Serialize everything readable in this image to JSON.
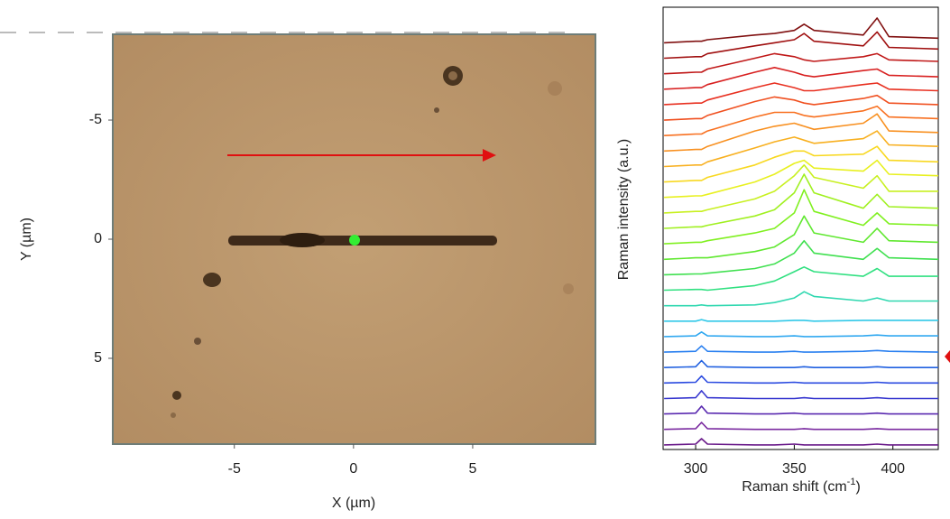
{
  "chart_data": [
    {
      "type": "image",
      "x_label": "X (µm)",
      "y_label": "Y (µm)",
      "xlim": [
        -10.1,
        10.15
      ],
      "ylim": [
        -8.6,
        8.6
      ],
      "y_inverted": true,
      "xticks": [
        -5,
        0,
        5
      ],
      "yticks": [
        -5,
        0,
        5
      ]
    },
    {
      "type": "line",
      "y_label": "Raman intensity (a.u.)",
      "x_label": "Raman shift (cm",
      "x_label_sup": "-1",
      "x_label_end": ")",
      "xlim": [
        283.5,
        423
      ],
      "ylim": [
        -0.3,
        28.3
      ],
      "xticks": [
        300,
        350,
        400
      ],
      "x": [
        284,
        300,
        303,
        306,
        330,
        340,
        350,
        355,
        360,
        385,
        392,
        398,
        423
      ],
      "series": [
        {
          "color": "#6a1b8a",
          "values": [
            0,
            0.05,
            0.4,
            0.05,
            0,
            0,
            0.05,
            0,
            0,
            0,
            0.05,
            0,
            0
          ]
        },
        {
          "color": "#7a2aa0",
          "values": [
            1,
            1.05,
            1.45,
            1.05,
            1,
            1,
            1,
            1.05,
            1,
            1,
            1.05,
            1,
            1
          ]
        },
        {
          "color": "#5a2ab0",
          "values": [
            2,
            2.05,
            2.5,
            2.05,
            2,
            2,
            2.05,
            2,
            2,
            2,
            2.05,
            2,
            2
          ]
        },
        {
          "color": "#3a3ad0",
          "values": [
            3,
            3.05,
            3.5,
            3.05,
            3,
            3,
            3,
            3.05,
            3,
            3,
            3.05,
            3,
            3
          ]
        },
        {
          "color": "#2a4ae0",
          "values": [
            4,
            4.05,
            4.45,
            4.05,
            4,
            4,
            4.05,
            4,
            4,
            4,
            4.05,
            4,
            4
          ]
        },
        {
          "color": "#2060e0",
          "values": [
            5,
            5.05,
            5.45,
            5.05,
            5,
            5,
            5,
            5.05,
            5,
            5,
            5.05,
            5,
            5
          ]
        },
        {
          "color": "#2a80f0",
          "values": [
            6,
            6.05,
            6.4,
            6.05,
            6,
            6,
            6.05,
            6,
            6,
            6.05,
            6.1,
            6.05,
            6
          ]
        },
        {
          "color": "#30a8f0",
          "values": [
            7,
            7.05,
            7.3,
            7.05,
            7,
            7,
            7.05,
            7,
            7,
            7.05,
            7.1,
            7.05,
            7.05
          ]
        },
        {
          "color": "#30c8e8",
          "values": [
            8,
            8,
            8.1,
            8,
            8,
            8,
            8.05,
            8.05,
            8,
            8.05,
            8.05,
            8.05,
            8.05
          ]
        },
        {
          "color": "#30d8b0",
          "values": [
            9,
            9,
            9.05,
            9,
            9.05,
            9.2,
            9.5,
            9.9,
            9.6,
            9.3,
            9.5,
            9.3,
            9.3
          ]
        },
        {
          "color": "#30e080",
          "values": [
            10,
            10.05,
            10.05,
            10,
            10.3,
            10.6,
            11.2,
            11.5,
            11.2,
            10.9,
            11.4,
            10.9,
            10.9
          ]
        },
        {
          "color": "#40e050",
          "values": [
            11,
            11.05,
            11.05,
            11.1,
            11.4,
            11.7,
            12.4,
            13.2,
            12.4,
            12,
            12.7,
            12.1,
            12
          ]
        },
        {
          "color": "#60e830",
          "values": [
            12,
            12.1,
            12.1,
            12.1,
            12.5,
            12.8,
            13.6,
            14.8,
            13.7,
            13.1,
            14,
            13.2,
            13.1
          ]
        },
        {
          "color": "#80f020",
          "values": [
            13,
            13.1,
            13.1,
            13.2,
            13.7,
            14,
            15,
            16.5,
            15.1,
            14.2,
            15,
            14.3,
            14.2
          ]
        },
        {
          "color": "#a0f020",
          "values": [
            14,
            14.1,
            14.1,
            14.2,
            14.8,
            15.2,
            16.3,
            17.5,
            16.3,
            15.3,
            16.2,
            15.4,
            15.3
          ]
        },
        {
          "color": "#c8f020",
          "values": [
            15,
            15.1,
            15.1,
            15.2,
            15.9,
            16.4,
            17.4,
            18.1,
            17.3,
            16.6,
            17.4,
            16.4,
            16.4
          ]
        },
        {
          "color": "#e8f020",
          "values": [
            16,
            16.1,
            16.1,
            16.2,
            17,
            17.5,
            18.2,
            18.4,
            17.9,
            17.7,
            18.4,
            17.5,
            17.4
          ]
        },
        {
          "color": "#f8d820",
          "values": [
            17,
            17.1,
            17.1,
            17.3,
            18.1,
            18.6,
            19,
            19,
            18.7,
            18.8,
            19.3,
            18.4,
            18.3
          ]
        },
        {
          "color": "#f8b020",
          "values": [
            18,
            18.1,
            18.1,
            18.3,
            19.2,
            19.6,
            19.9,
            19.7,
            19.5,
            19.8,
            20.3,
            19.4,
            19.3
          ]
        },
        {
          "color": "#f89020",
          "values": [
            19,
            19.1,
            19.1,
            19.3,
            20.3,
            20.6,
            20.8,
            20.6,
            20.4,
            20.8,
            21.4,
            20.3,
            20.2
          ]
        },
        {
          "color": "#f87020",
          "values": [
            20,
            20.1,
            20.1,
            20.3,
            21.2,
            21.5,
            21.5,
            21.3,
            21.2,
            21.6,
            21.9,
            21.2,
            21.1
          ]
        },
        {
          "color": "#f05020",
          "values": [
            21,
            21.1,
            21.1,
            21.3,
            22.2,
            22.5,
            22.3,
            22.1,
            22,
            22.4,
            22.6,
            22.1,
            22
          ]
        },
        {
          "color": "#e83020",
          "values": [
            22,
            22.1,
            22.1,
            22.3,
            23.1,
            23.4,
            23.1,
            22.9,
            22.9,
            23.3,
            23.4,
            23,
            22.9
          ]
        },
        {
          "color": "#d82020",
          "values": [
            23,
            23.1,
            23.1,
            23.3,
            24.1,
            24.4,
            24.1,
            23.9,
            23.8,
            24.2,
            24.3,
            23.9,
            23.8
          ]
        },
        {
          "color": "#c01818",
          "values": [
            24,
            24.1,
            24.1,
            24.3,
            25,
            25.3,
            25.1,
            24.9,
            24.8,
            25.1,
            25.3,
            24.9,
            24.8
          ]
        },
        {
          "color": "#a01010",
          "values": [
            25,
            25.1,
            25.1,
            25.3,
            25.8,
            26,
            26.2,
            26.6,
            26.1,
            25.8,
            26.7,
            25.7,
            25.6
          ]
        },
        {
          "color": "#801010",
          "values": [
            26,
            26.1,
            26.1,
            26.2,
            26.5,
            26.6,
            26.8,
            27.2,
            26.8,
            26.5,
            27.6,
            26.4,
            26.3
          ]
        }
      ]
    }
  ]
}
